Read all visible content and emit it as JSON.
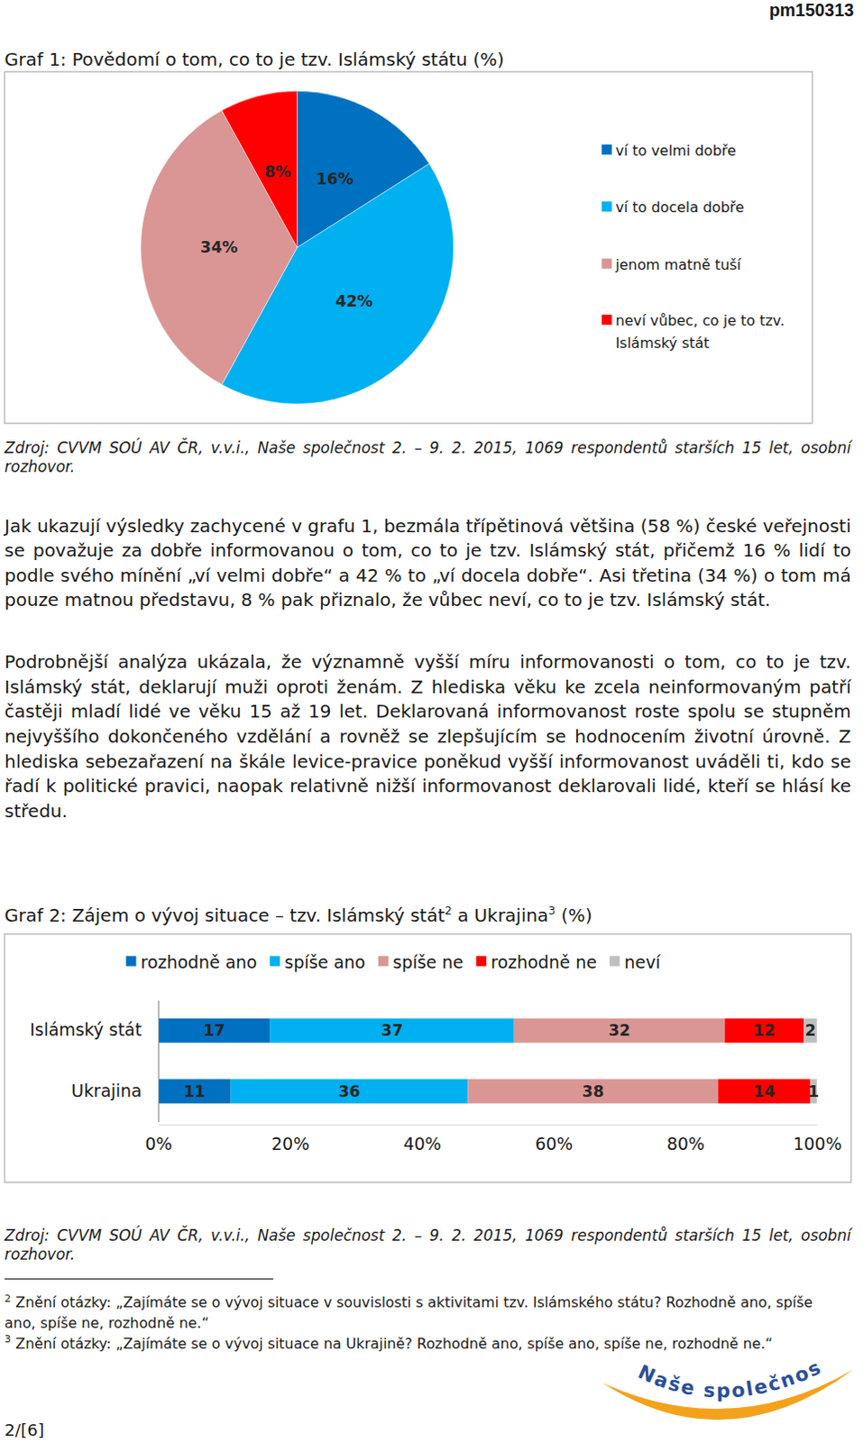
{
  "chart_data": [
    {
      "type": "pie",
      "title": "Graf 1: Povědomí o tom, co to je tzv. Islámský státu (%)",
      "categories": [
        "ví to velmi dobře",
        "ví to docela dobře",
        "jenom matně tuší",
        "neví vůbec, co je to tzv. Islámský stát"
      ],
      "values": [
        16,
        42,
        34,
        8
      ],
      "value_labels": [
        "16%",
        "42%",
        "34%",
        "8%"
      ],
      "colors": [
        "#0070c0",
        "#00b0f0",
        "#d99694",
        "#ff0000"
      ],
      "data_labels": true,
      "legend": "right"
    },
    {
      "type": "bar",
      "title": [
        "Graf 2: Zájem o vývoj situace – tzv. Islámský stát",
        "2",
        " a Ukrajina",
        "3",
        " (%)"
      ],
      "orientation": "horizontal",
      "stacked": true,
      "data_labels": true,
      "legend": "top",
      "categories": [
        "Islámský stát",
        "Ukrajina"
      ],
      "series": [
        {
          "name": "rozhodně ano",
          "color": "#0070c0",
          "values": [
            17,
            11
          ]
        },
        {
          "name": "spíše ano",
          "color": "#00b0f0",
          "values": [
            37,
            36
          ]
        },
        {
          "name": "spíše ne",
          "color": "#d99694",
          "values": [
            32,
            38
          ]
        },
        {
          "name": "rozhodně ne",
          "color": "#ff0000",
          "values": [
            12,
            14
          ]
        },
        {
          "name": "neví",
          "color": "#bfbfbf",
          "values": [
            2,
            1
          ]
        }
      ],
      "xlim": [
        0,
        100
      ],
      "xticks": [
        {
          "value": 0,
          "label": "0%"
        },
        {
          "value": 20,
          "label": "20%"
        },
        {
          "value": 40,
          "label": "40%"
        },
        {
          "value": 60,
          "label": "60%"
        },
        {
          "value": 80,
          "label": "80%"
        },
        {
          "value": 100,
          "label": "100%"
        }
      ]
    }
  ],
  "document": {
    "page_code": "pm150313",
    "sources": [
      "Zdroj: CVVM SOÚ AV ČR, v.v.i., Naše společnost 2. – 9. 2. 2015, 1069 respondentů starších 15 let, osobní rozhovor.",
      "Zdroj: CVVM SOÚ AV ČR, v.v.i., Naše společnost 2. – 9. 2. 2015, 1069 respondentů starších 15 let, osobní rozhovor."
    ],
    "paragraphs": [
      "Jak ukazují výsledky zachycené v grafu 1, bezmála třípětinová většina (58 %) české veřejnosti se považuje za dobře informovanou o tom, co to je tzv. Islámský stát, přičemž 16 % lidí to podle svého mínění „ví velmi dobře“ a 42 % to „ví docela dobře“. Asi třetina (34 %) o tom má pouze matnou představu, 8 % pak přiznalo, že vůbec neví, co to je tzv. Islámský stát.",
      "Podrobnější analýza ukázala, že významně vyšší míru informovanosti o tom, co to je tzv. Islámský stát, deklarují muži oproti ženám. Z hlediska věku ke zcela neinformovaným patří častěji mladí lidé ve věku 15 až 19 let. Deklarovaná informovanost roste spolu se stupněm nejvyššího dokončeného vzdělání a rovněž se zlepšujícím se hodnocením životní úrovně. Z hlediska sebezařazení na škále levice-pravice poněkud vyšší informovanost uváděli ti, kdo se řadí k politické pravici, naopak relativně nižší informovanost deklarovali lidé, kteří se hlásí ke středu."
    ],
    "footnotes": [
      {
        "mark": "2",
        "text": "Znění otázky: „Zajímáte se o vývoj situace v souvislosti s aktivitami tzv. Islámského státu? Rozhodně ano, spíše ano, spíše ne, rozhodně ne.“"
      },
      {
        "mark": "3",
        "text": "Znění otázky: „Zajímáte se o vývoj situace na Ukrajině? Rozhodně ano, spíše ano, spíše ne, rozhodně ne.“"
      }
    ],
    "logo": "Naše společnost",
    "page_number": "2/[6]"
  }
}
